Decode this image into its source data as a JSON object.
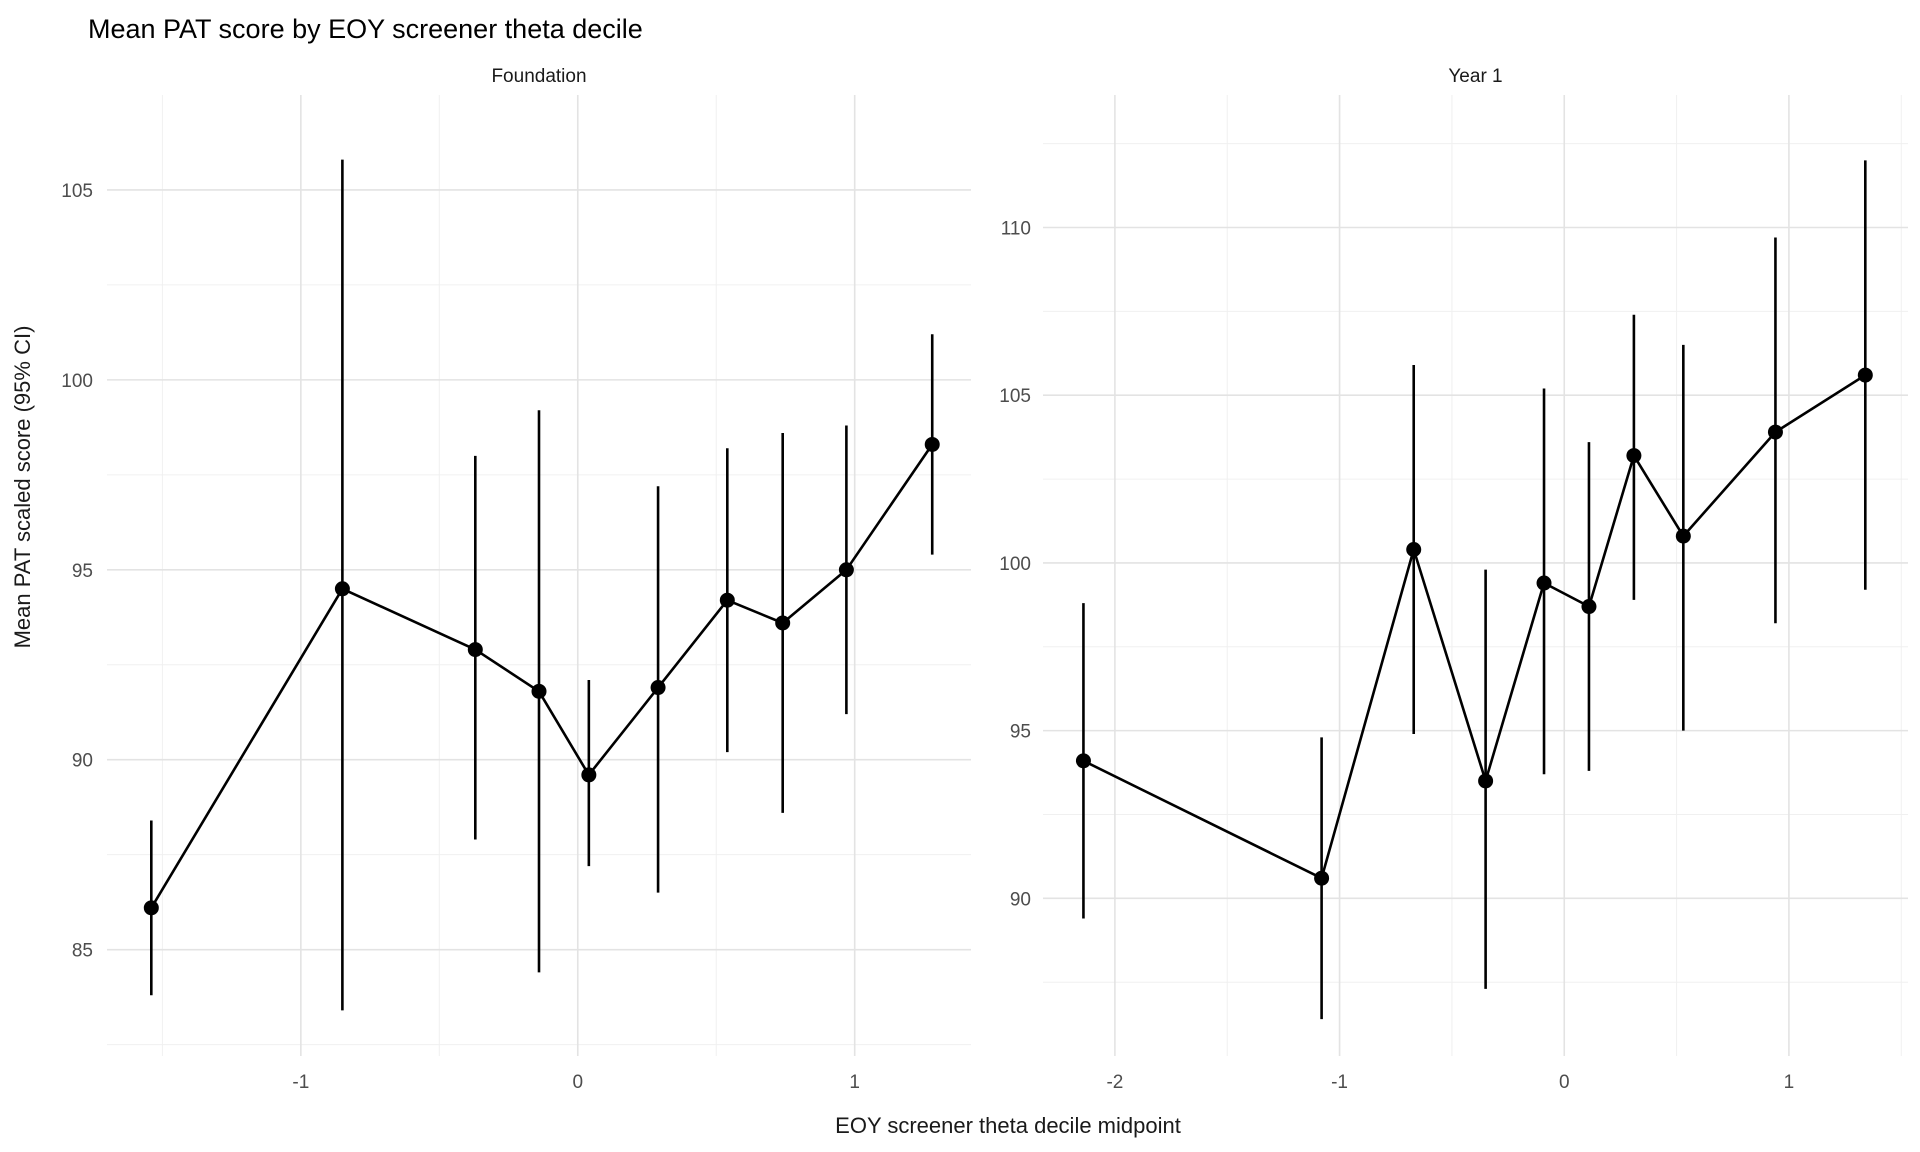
{
  "chart_data": {
    "type": "pointrange",
    "title": "Mean PAT score by EOY screener theta decile",
    "xlabel": "EOY screener theta decile midpoint",
    "ylabel": "Mean PAT scaled score (95% CI)",
    "grid": true,
    "legend": "none",
    "colors": {
      "point": "#000000",
      "line": "#000000",
      "error_bar": "#000000",
      "grid_major": "#e3e3e3",
      "grid_minor": "#f0f0f0",
      "axis_text": "#4d4d4d",
      "strip_text": "#1a1a1a",
      "title_text": "#000000",
      "background": "#ffffff"
    },
    "facets": [
      {
        "label": "Foundation",
        "xlim": [
          -1.7,
          1.42
        ],
        "ylim": [
          82.2,
          107.5
        ],
        "x_major_ticks": [
          -1,
          0,
          1
        ],
        "x_minor_ticks": [
          -1.5,
          -0.5,
          0.5
        ],
        "y_major_ticks": [
          105,
          100,
          95,
          90,
          85
        ],
        "y_minor_ticks": [
          102.5,
          97.5,
          92.5,
          87.5,
          82.5
        ],
        "points": [
          {
            "x": -1.54,
            "y": 86.1,
            "lo": 83.8,
            "hi": 88.4
          },
          {
            "x": -0.85,
            "y": 94.5,
            "lo": 83.4,
            "hi": 105.8
          },
          {
            "x": -0.37,
            "y": 92.9,
            "lo": 87.9,
            "hi": 98.0
          },
          {
            "x": -0.14,
            "y": 91.8,
            "lo": 84.4,
            "hi": 99.2
          },
          {
            "x": 0.04,
            "y": 89.6,
            "lo": 87.2,
            "hi": 92.1
          },
          {
            "x": 0.29,
            "y": 91.9,
            "lo": 86.5,
            "hi": 97.2
          },
          {
            "x": 0.54,
            "y": 94.2,
            "lo": 90.2,
            "hi": 98.2
          },
          {
            "x": 0.74,
            "y": 93.6,
            "lo": 88.6,
            "hi": 98.6
          },
          {
            "x": 0.97,
            "y": 95.0,
            "lo": 91.2,
            "hi": 98.8
          },
          {
            "x": 1.28,
            "y": 98.3,
            "lo": 95.4,
            "hi": 101.2
          }
        ]
      },
      {
        "label": "Year 1",
        "xlim": [
          -2.32,
          1.53
        ],
        "ylim": [
          85.3,
          113.95
        ],
        "x_major_ticks": [
          -2,
          -1,
          0,
          1
        ],
        "x_minor_ticks": [
          -1.5,
          -0.5,
          0.5,
          1.5
        ],
        "y_major_ticks": [
          110,
          105,
          100,
          95,
          90
        ],
        "y_minor_ticks": [
          112.5,
          107.5,
          102.5,
          97.5,
          92.5,
          87.5
        ],
        "points": [
          {
            "x": -2.14,
            "y": 94.1,
            "lo": 89.4,
            "hi": 98.8
          },
          {
            "x": -1.08,
            "y": 90.6,
            "lo": 86.4,
            "hi": 94.8
          },
          {
            "x": -0.67,
            "y": 100.4,
            "lo": 94.9,
            "hi": 105.9
          },
          {
            "x": -0.35,
            "y": 93.5,
            "lo": 87.3,
            "hi": 99.8
          },
          {
            "x": -0.09,
            "y": 99.4,
            "lo": 93.7,
            "hi": 105.2
          },
          {
            "x": 0.11,
            "y": 98.7,
            "lo": 93.8,
            "hi": 103.6
          },
          {
            "x": 0.31,
            "y": 103.2,
            "lo": 98.9,
            "hi": 107.4
          },
          {
            "x": 0.53,
            "y": 100.8,
            "lo": 95.0,
            "hi": 106.5
          },
          {
            "x": 0.94,
            "y": 103.9,
            "lo": 98.2,
            "hi": 109.7
          },
          {
            "x": 1.34,
            "y": 105.6,
            "lo": 99.2,
            "hi": 112.0
          }
        ]
      }
    ]
  }
}
